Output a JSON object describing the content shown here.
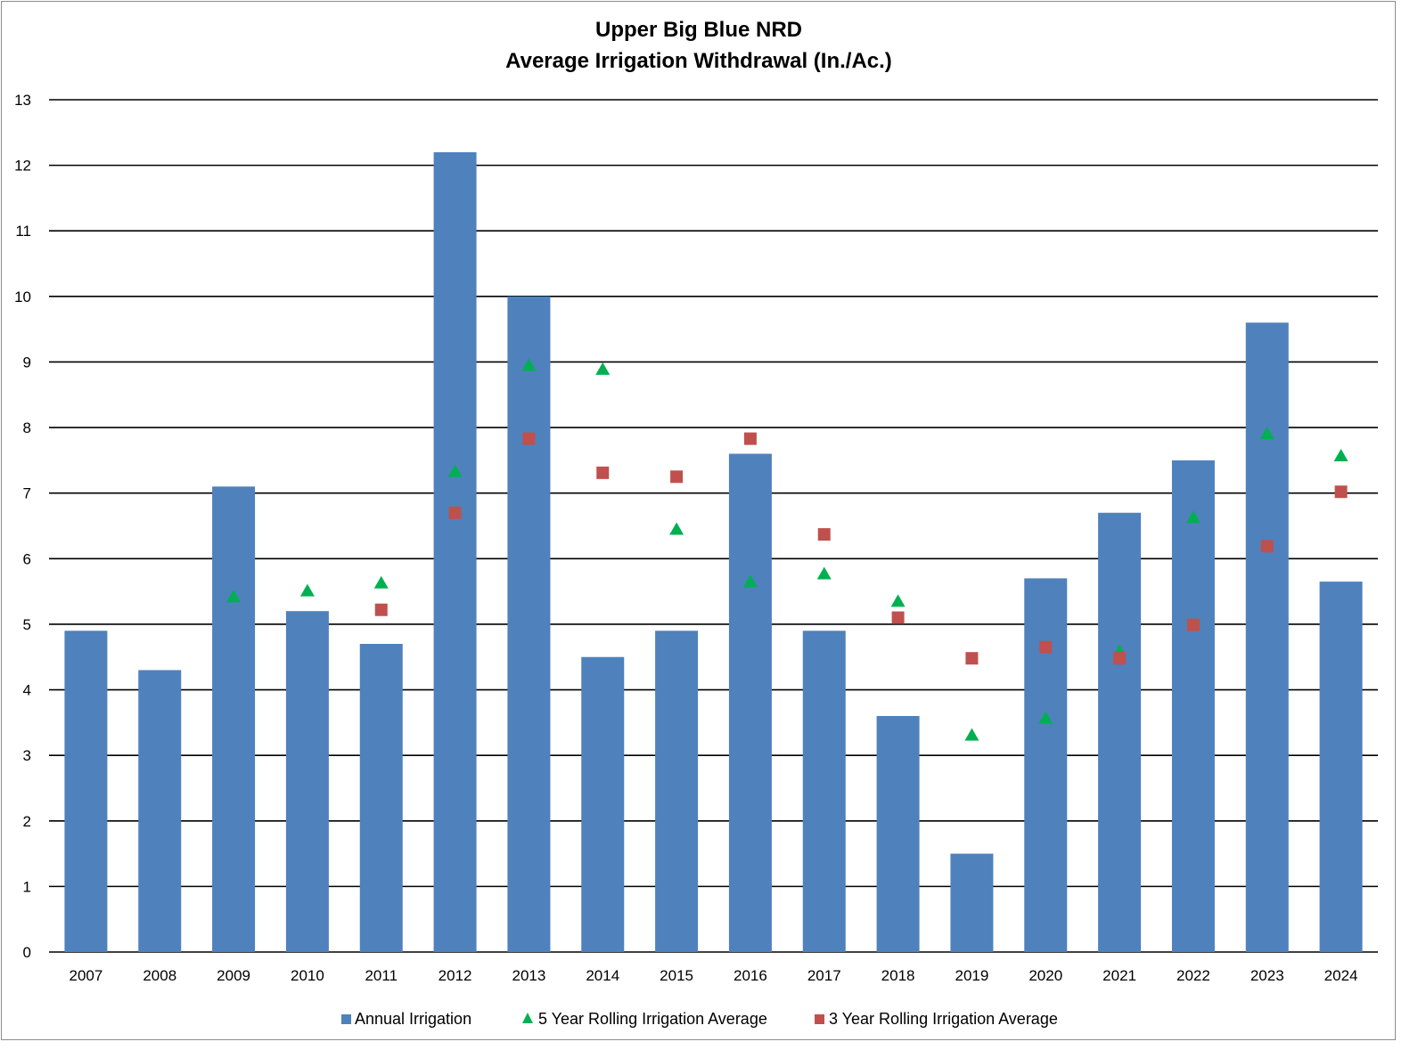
{
  "chart_data": {
    "type": "bar",
    "title": "Upper Big Blue NRD",
    "subtitle": "Average Irrigation Withdrawal (In./Ac.)",
    "xlabel": "",
    "ylabel": "",
    "ylim": [
      0,
      13
    ],
    "yticks": [
      "0",
      "1",
      "2",
      "3",
      "4",
      "5",
      "6",
      "7",
      "8",
      "9",
      "10",
      "11",
      "12",
      "13"
    ],
    "categories": [
      "2007",
      "2008",
      "2009",
      "2010",
      "2011",
      "2012",
      "2013",
      "2014",
      "2015",
      "2016",
      "2017",
      "2018",
      "2019",
      "2020",
      "2021",
      "2022",
      "2023",
      "2024"
    ],
    "grid": true,
    "legend_position": "bottom",
    "series": [
      {
        "name": "Annual Irrigation",
        "kind": "bar",
        "marker": "square",
        "color": "#4F81BD",
        "values": [
          4.9,
          4.3,
          7.1,
          5.2,
          4.7,
          12.2,
          10.0,
          4.5,
          4.9,
          7.6,
          4.9,
          3.6,
          1.5,
          5.7,
          6.7,
          7.5,
          9.6,
          5.65
        ]
      },
      {
        "name": "5 Year Rolling Irrigation Average",
        "kind": "scatter",
        "marker": "triangle",
        "color": "#00B050",
        "values": [
          null,
          null,
          5.43,
          5.52,
          5.64,
          7.34,
          8.96,
          8.9,
          6.46,
          5.66,
          5.78,
          5.36,
          3.32,
          3.58,
          4.6,
          6.64,
          7.92,
          7.58
        ]
      },
      {
        "name": "3 Year Rolling Irrigation Average",
        "kind": "scatter",
        "marker": "square",
        "color": "#C0504D",
        "values": [
          null,
          null,
          null,
          null,
          5.22,
          6.7,
          7.83,
          7.31,
          7.25,
          7.83,
          6.37,
          5.1,
          4.48,
          4.65,
          4.48,
          4.99,
          6.19,
          7.02
        ]
      }
    ]
  }
}
